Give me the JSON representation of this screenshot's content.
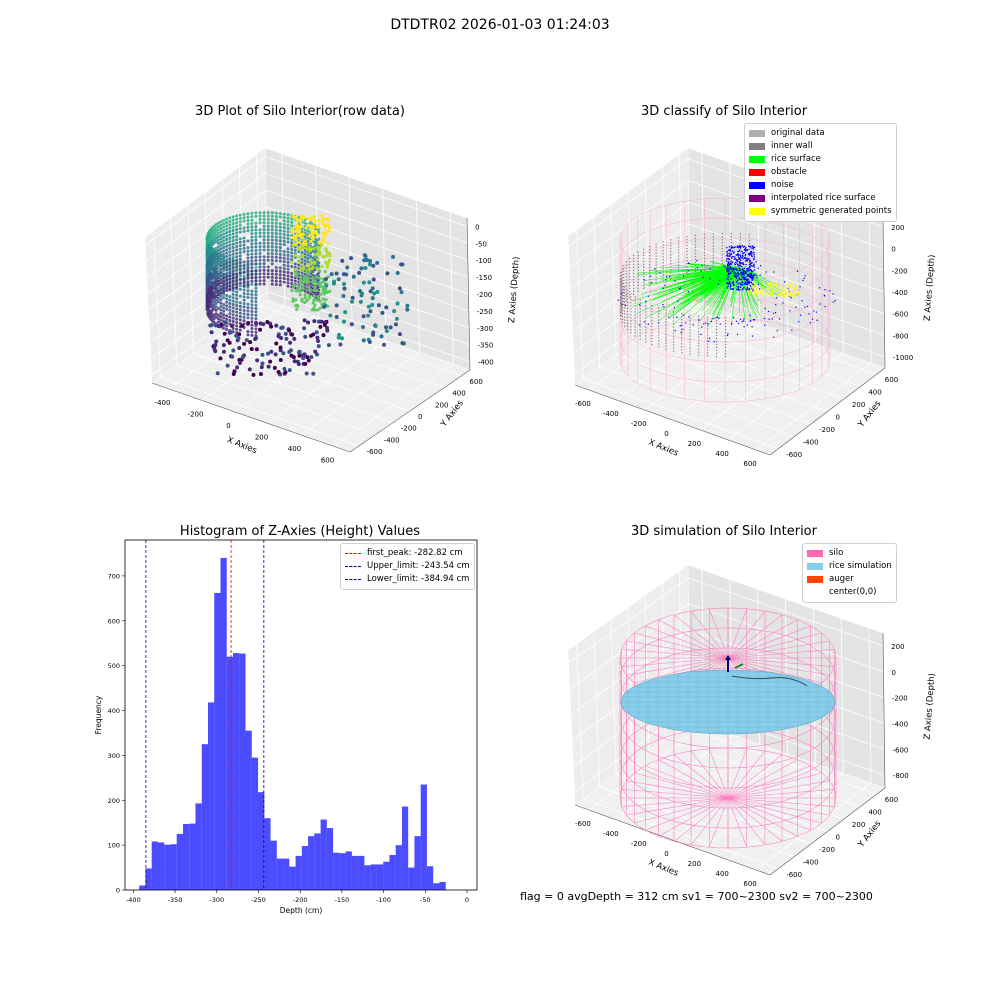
{
  "suptitle": "DTDTR02 2026-01-03 01:24:03",
  "status_text": "flag = 0     avgDepth = 312 cm  sv1 = 700~2300  sv2 = 700~2300",
  "chart_data": [
    {
      "type": "scatter",
      "title": "3D Plot of Silo Interior(row data)",
      "xlabel": "X Axies",
      "ylabel": "Y Axies",
      "zlabel": "Z Axies (Depth)",
      "x_ticks": [
        "-400",
        "-200",
        "0",
        "200",
        "400",
        "600"
      ],
      "y_ticks": [
        "-600",
        "-400",
        "-200",
        "0",
        "200",
        "400",
        "600"
      ],
      "z_ticks": [
        "0",
        "-50",
        "-100",
        "-150",
        "-200",
        "-250",
        "-300",
        "-350",
        "-400"
      ],
      "colormap": "viridis",
      "grid": true
    },
    {
      "type": "scatter",
      "title": "3D classify of Silo Interior",
      "xlabel": "X Axies",
      "ylabel": "Y Axies",
      "zlabel": "Z Axies (Depth)",
      "x_ticks": [
        "-600",
        "-400",
        "-200",
        "0",
        "200",
        "400",
        "600"
      ],
      "y_ticks": [
        "-600",
        "-400",
        "-200",
        "0",
        "200",
        "400",
        "600"
      ],
      "z_ticks": [
        "200",
        "0",
        "-200",
        "-400",
        "-600",
        "-800",
        "-1000"
      ],
      "legend_placement": "top-right",
      "legend": [
        {
          "label": "original data",
          "color": "#b0b0b0"
        },
        {
          "label": "inner wall",
          "color": "#808080"
        },
        {
          "label": "rice surface",
          "color": "#00ff00"
        },
        {
          "label": "obstacle",
          "color": "#ff0000"
        },
        {
          "label": "noise",
          "color": "#0000ff"
        },
        {
          "label": "interpolated rice surface",
          "color": "#800080"
        },
        {
          "label": "symmetric generated points",
          "color": "#ffff00"
        }
      ],
      "grid": true
    },
    {
      "type": "bar",
      "title": "Histogram of Z-Axies (Height) Values",
      "xlabel": "Depth (cm)",
      "ylabel": "Frequency",
      "xlim": [
        -410,
        12
      ],
      "ylim": [
        0,
        780
      ],
      "x_ticks": [
        -400,
        -350,
        -300,
        -250,
        -200,
        -150,
        -100,
        -50,
        0
      ],
      "y_ticks": [
        0,
        100,
        200,
        300,
        400,
        500,
        600,
        700
      ],
      "bin_start": -393,
      "bin_width": 7.5,
      "values": [
        10,
        48,
        108,
        106,
        101,
        102,
        125,
        147,
        148,
        193,
        325,
        418,
        662,
        740,
        520,
        528,
        527,
        355,
        295,
        218,
        160,
        110,
        70,
        70,
        52,
        76,
        98,
        120,
        126,
        157,
        138,
        83,
        82,
        86,
        76,
        76,
        55,
        57,
        57,
        63,
        78,
        100,
        186,
        50,
        120,
        235,
        53,
        15,
        18
      ],
      "bar_color": "#0000ff",
      "vlines": [
        {
          "label": "first_peak: -282.82 cm",
          "x": -282.82,
          "color": "#ff0000"
        },
        {
          "label": "Upper_limit: -243.54 cm",
          "x": -243.54,
          "color": "#00008b"
        },
        {
          "label": "Lower_limit: -384.94 cm",
          "x": -384.94,
          "color": "#00008b"
        }
      ],
      "legend_placement": "top-right"
    },
    {
      "type": "surface",
      "title": "3D simulation of Silo Interior",
      "xlabel": "X Axies",
      "ylabel": "Y Axies",
      "zlabel": "Z Axies (Depth)",
      "x_ticks": [
        "-600",
        "-400",
        "-200",
        "0",
        "200",
        "400",
        "600"
      ],
      "y_ticks": [
        "-600",
        "-400",
        "-200",
        "0",
        "200",
        "400",
        "600"
      ],
      "z_ticks": [
        "200",
        "0",
        "-200",
        "-400",
        "-600",
        "-800"
      ],
      "legend_placement": "top-right",
      "legend": [
        {
          "label": "silo",
          "color": "#ff69b4"
        },
        {
          "label": "rice simulation",
          "color": "#87ceeb"
        },
        {
          "label": "auger",
          "color": "#ff4500"
        },
        {
          "label": "center(0,0)",
          "color": "#ffffff"
        }
      ],
      "grid": true
    }
  ]
}
